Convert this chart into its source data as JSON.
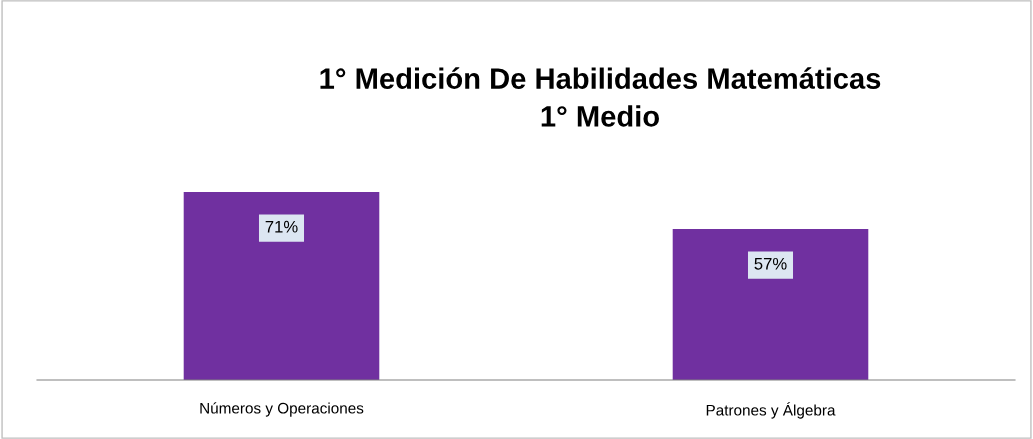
{
  "chart_data": {
    "type": "bar",
    "title": "1° Medición De Habilidades Matemáticas\n1° Medio",
    "categories": [
      "Números y Operaciones",
      "Patrones y Álgebra"
    ],
    "values": [
      71,
      57
    ],
    "value_labels": [
      "71%",
      "57%"
    ],
    "color": "#7030a0",
    "grid": false,
    "legend": false
  }
}
